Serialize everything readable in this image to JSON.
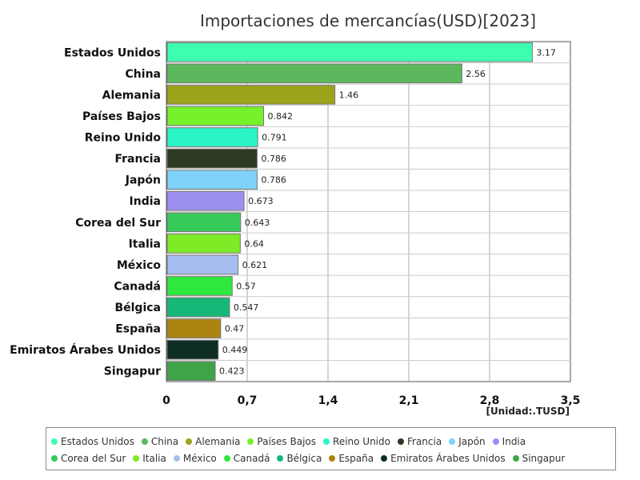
{
  "chart_data": {
    "type": "bar",
    "orientation": "horizontal",
    "title": "Importaciones de mercancías(USD)[2023]",
    "unit_label": "[Unidad:.TUSD]",
    "categories": [
      "Estados Unidos",
      "China",
      "Alemania",
      "Países Bajos",
      "Reino Unido",
      "Francia",
      "Japón",
      "India",
      "Corea del Sur",
      "Italia",
      "México",
      "Canadá",
      "Bélgica",
      "España",
      "Emiratos Árabes Unidos",
      "Singapur"
    ],
    "values": [
      3.17,
      2.56,
      1.46,
      0.842,
      0.791,
      0.786,
      0.786,
      0.673,
      0.643,
      0.64,
      0.621,
      0.57,
      0.547,
      0.47,
      0.449,
      0.423
    ],
    "value_labels": [
      "3.17",
      "2.56",
      "1.46",
      "0.842",
      "0.791",
      "0.786",
      "0.786",
      "0.673",
      "0.643",
      "0.64",
      "0.621",
      "0.57",
      "0.547",
      "0.47",
      "0.449",
      "0.423"
    ],
    "colors": [
      "#3dfdb0",
      "#5cb85c",
      "#9aa31a",
      "#77f12b",
      "#2bf5c6",
      "#2d3a22",
      "#7fd3fb",
      "#9b8ff0",
      "#37c95a",
      "#7deb26",
      "#a5bdf0",
      "#2ee83d",
      "#16b878",
      "#ab8510",
      "#0e2d23",
      "#3ea447"
    ],
    "xlim": [
      0,
      3.5
    ],
    "xticks": [
      0,
      0.7,
      1.4,
      2.1,
      2.8,
      3.5
    ],
    "xtick_labels": [
      "0",
      "0,7",
      "1,4",
      "2,1",
      "2,8",
      "3,5"
    ],
    "grid": true,
    "legend_position": "bottom"
  }
}
